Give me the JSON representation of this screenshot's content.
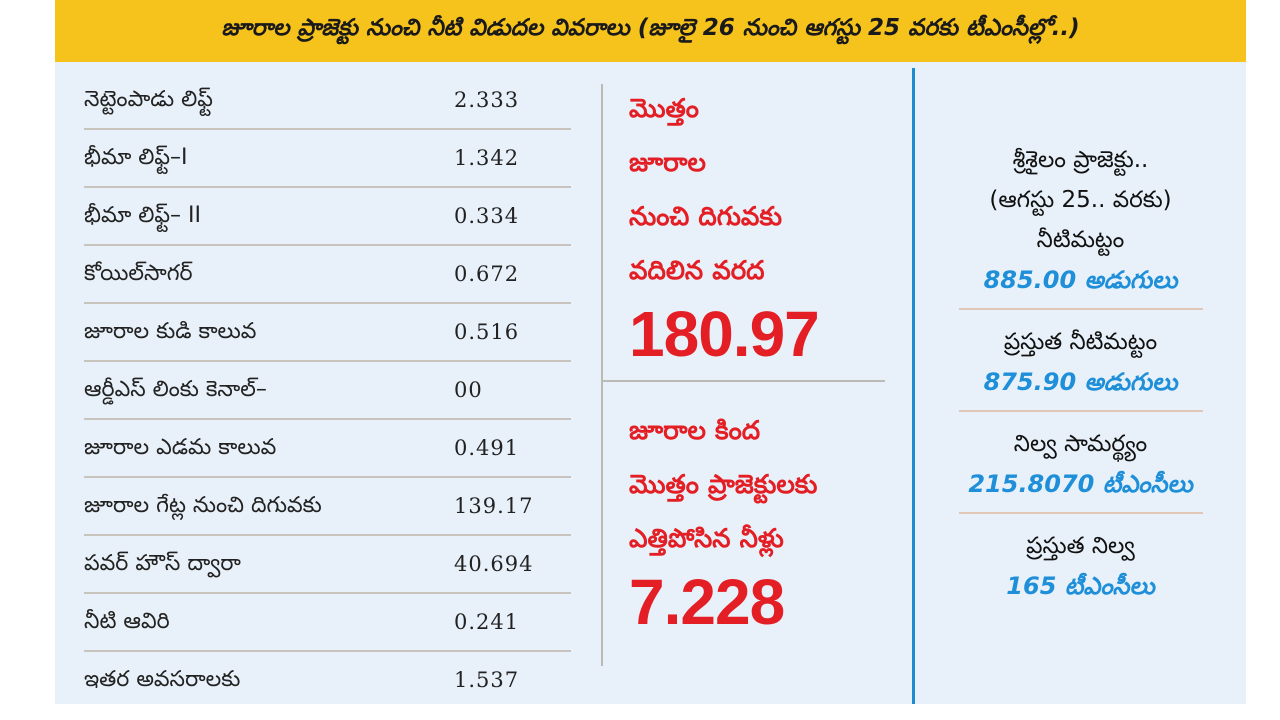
{
  "banner": {
    "title": "జూరాల ప్రాజెక్టు నుంచి నీటి విడుదల వివరాలు (జూలై 26 నుంచి ఆగస్టు 25 వరకు టీఎంసీల్లో..)"
  },
  "table": {
    "rows": [
      {
        "label": "నెట్టెంపాడు లిఫ్ట్",
        "value": "2.333"
      },
      {
        "label": "భీమా లిఫ్ట్–I",
        "value": "1.342"
      },
      {
        "label": "భీమా లిఫ్ట్– II",
        "value": "0.334"
      },
      {
        "label": "కోయిల్‌సాగర్",
        "value": "0.672"
      },
      {
        "label": "జూరాల కుడి కాలువ",
        "value": "0.516"
      },
      {
        "label": "ఆర్డీఎస్ లింకు కెనాల్–",
        "value": "00"
      },
      {
        "label": "జూరాల ఎడమ కాలువ",
        "value": "0.491"
      },
      {
        "label": "జూరాల గేట్ల నుంచి దిగువకు",
        "value": "139.17"
      },
      {
        "label": "పవర్ హౌస్ ద్వారా",
        "value": "40.694"
      },
      {
        "label": "నీటి ఆవిరి",
        "value": "0.241"
      },
      {
        "label": "ఇతర అవసరాలకు",
        "value": "1.537"
      }
    ]
  },
  "middle": {
    "flood": {
      "lines": [
        "మొత్తం",
        "జూరాల",
        "నుంచి దిగువకు",
        "వదిలిన వరద"
      ],
      "value": "180.97"
    },
    "lifted": {
      "lines": [
        "జూరాల కింద",
        "మొత్తం ప్రాజెక్టులకు",
        "ఎత్తిపోసిన నీళ్లు"
      ],
      "value": "7.228"
    }
  },
  "right": {
    "title_line1": "శ్రీశైలం ప్రాజెక్టు..",
    "title_line2": "(ఆగస్టు 25.. వరకు)",
    "items": [
      {
        "label": "నీటిమట్టం",
        "value": "885.00 అడుగులు"
      },
      {
        "label": "ప్రస్తుత నీటిమట్టం",
        "value": "875.90 అడుగులు"
      },
      {
        "label": "నిల్వ సామర్థ్యం",
        "value": "215.8070 టీఎంసీలు"
      },
      {
        "label": "ప్రస్తుత నిల్వ",
        "value": "165 టీఎంసీలు"
      }
    ]
  },
  "colors": {
    "banner": "#f6c21c",
    "panel": "#e8f1f9",
    "red_accent": "#e31e24",
    "blue_accent": "#1e8fd8",
    "divider_blue": "#1e8ad0"
  }
}
